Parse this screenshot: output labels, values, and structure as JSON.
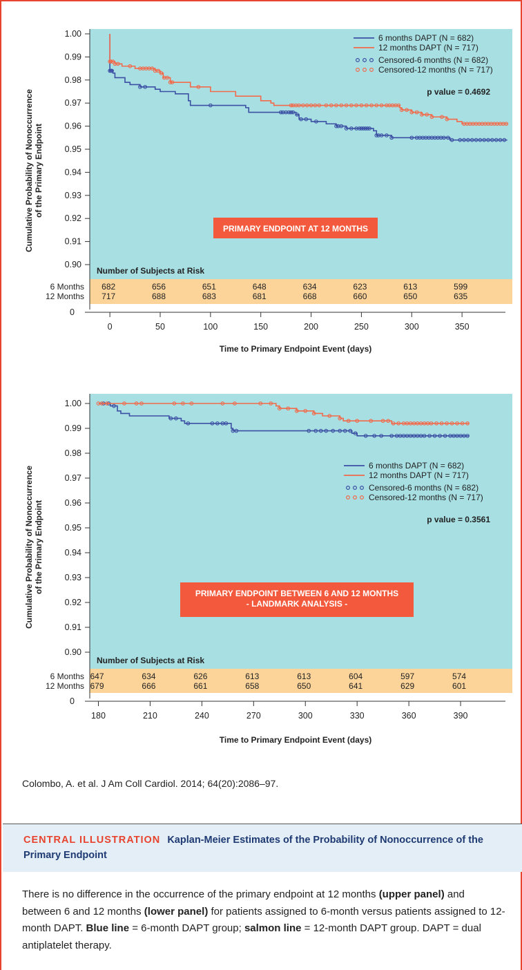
{
  "chart_data": [
    {
      "type": "line",
      "title": "PRIMARY ENDPOINT AT 12 MONTHS",
      "xlabel": "Time to Primary Endpoint Event (days)",
      "ylabel": [
        "Cumulative Probability of Nonoccurrence",
        "of the Primary Endpoint"
      ],
      "xlim": [
        -20,
        400
      ],
      "ylim": [
        0.895,
        1.0
      ],
      "xticks": [
        0,
        50,
        100,
        150,
        200,
        250,
        300,
        350
      ],
      "yticks": [
        "1.00",
        "0.99",
        "0.98",
        "0.97",
        "0.96",
        "0.95",
        "0.94",
        "0.93",
        "0.92",
        "0.91",
        "0.90"
      ],
      "ybreak_label": "0",
      "p_value": "p value = 0.4692",
      "legend_position": "top-right",
      "legend": [
        {
          "label": "6 months DAPT (N = 682)",
          "kind": "line",
          "color": "#3b4fa3"
        },
        {
          "label": "12 months DAPT (N = 717)",
          "kind": "line",
          "color": "#f26a4a"
        },
        {
          "label": "Censored-6 months (N = 682)",
          "kind": "circles",
          "color": "#3b4fa3"
        },
        {
          "label": "Censored-12 months (N = 717)",
          "kind": "circles",
          "color": "#f26a4a"
        }
      ],
      "series": [
        {
          "name": "6 months DAPT (N = 682)",
          "color": "#3b4fa3",
          "points": [
            [
              0,
              1.0
            ],
            [
              0,
              0.984
            ],
            [
              3,
              0.983
            ],
            [
              5,
              0.981
            ],
            [
              15,
              0.979
            ],
            [
              20,
              0.978
            ],
            [
              30,
              0.977
            ],
            [
              45,
              0.976
            ],
            [
              50,
              0.975
            ],
            [
              65,
              0.974
            ],
            [
              78,
              0.971
            ],
            [
              80,
              0.969
            ],
            [
              135,
              0.968
            ],
            [
              138,
              0.966
            ],
            [
              185,
              0.965
            ],
            [
              188,
              0.963
            ],
            [
              200,
              0.962
            ],
            [
              215,
              0.961
            ],
            [
              225,
              0.96
            ],
            [
              235,
              0.959
            ],
            [
              262,
              0.958
            ],
            [
              265,
              0.956
            ],
            [
              280,
              0.955
            ],
            [
              338,
              0.954
            ],
            [
              395,
              0.954
            ]
          ],
          "censored_x": [
            0,
            1,
            2,
            30,
            35,
            100,
            170,
            172,
            175,
            178,
            180,
            182,
            186,
            190,
            195,
            205,
            225,
            227,
            230,
            235,
            240,
            245,
            248,
            250,
            252,
            254,
            256,
            258,
            265,
            267,
            270,
            275,
            280,
            300,
            305,
            308,
            311,
            314,
            317,
            320,
            323,
            326,
            329,
            332,
            336,
            340,
            348,
            352,
            356,
            360,
            364,
            368,
            372,
            376,
            380,
            384,
            388,
            392
          ]
        },
        {
          "name": "12 months DAPT (N = 717)",
          "color": "#f26a4a",
          "points": [
            [
              0,
              1.0
            ],
            [
              0,
              0.988
            ],
            [
              5,
              0.987
            ],
            [
              12,
              0.986
            ],
            [
              25,
              0.985
            ],
            [
              45,
              0.984
            ],
            [
              50,
              0.983
            ],
            [
              53,
              0.981
            ],
            [
              60,
              0.979
            ],
            [
              80,
              0.977
            ],
            [
              100,
              0.975
            ],
            [
              125,
              0.973
            ],
            [
              150,
              0.971
            ],
            [
              160,
              0.97
            ],
            [
              163,
              0.969
            ],
            [
              288,
              0.968
            ],
            [
              290,
              0.967
            ],
            [
              300,
              0.966
            ],
            [
              310,
              0.965
            ],
            [
              320,
              0.964
            ],
            [
              335,
              0.963
            ],
            [
              345,
              0.962
            ],
            [
              350,
              0.961
            ],
            [
              395,
              0.961
            ]
          ],
          "censored_x": [
            0,
            1,
            3,
            5,
            8,
            20,
            30,
            33,
            36,
            39,
            42,
            45,
            48,
            51,
            54,
            57,
            60,
            62,
            88,
            180,
            182,
            185,
            188,
            192,
            196,
            200,
            204,
            208,
            215,
            220,
            225,
            230,
            235,
            240,
            245,
            250,
            255,
            260,
            265,
            270,
            275,
            278,
            281,
            284,
            287,
            290,
            295,
            300,
            305,
            310,
            315,
            320,
            330,
            335,
            352,
            355,
            358,
            361,
            364,
            367,
            370,
            373,
            376,
            379,
            382,
            385,
            388,
            391,
            394
          ]
        }
      ],
      "risk_table": {
        "title": "Number of Subjects at Risk",
        "rows": [
          {
            "label": "6 Months",
            "values": [
              "682",
              "656",
              "651",
              "648",
              "634",
              "623",
              "613",
              "599"
            ]
          },
          {
            "label": "12 Months",
            "values": [
              "717",
              "688",
              "683",
              "681",
              "668",
              "660",
              "650",
              "635"
            ]
          }
        ]
      }
    },
    {
      "type": "line",
      "title": "PRIMARY ENDPOINT BETWEEN 6 AND 12 MONTHS",
      "subtitle": "- LANDMARK ANALYSIS -",
      "xlabel": "Time to Primary Endpoint Event (days)",
      "ylabel": [
        "Cumulative Probability of Nonoccurrence",
        "of the Primary Endpoint"
      ],
      "xlim": [
        175,
        420
      ],
      "ylim": [
        0.895,
        1.0
      ],
      "xticks": [
        180,
        210,
        240,
        270,
        300,
        330,
        360,
        390
      ],
      "yticks": [
        "1.00",
        "0.99",
        "0.98",
        "0.97",
        "0.96",
        "0.95",
        "0.94",
        "0.93",
        "0.92",
        "0.91",
        "0.90"
      ],
      "ybreak_label": "0",
      "p_value": "p value = 0.3561",
      "legend_position": "middle-right",
      "legend": [
        {
          "label": "6 months DAPT (N = 682)",
          "kind": "line",
          "color": "#3b4fa3"
        },
        {
          "label": "12 months DAPT (N = 717)",
          "kind": "line",
          "color": "#f26a4a"
        },
        {
          "label": "Censored-6 months (N = 682)",
          "kind": "circles",
          "color": "#3b4fa3"
        },
        {
          "label": "Censored-12 months (N = 717)",
          "kind": "circles",
          "color": "#f26a4a"
        }
      ],
      "series": [
        {
          "name": "6 months DAPT (N = 682)",
          "color": "#3b4fa3",
          "points": [
            [
              180,
              1.0
            ],
            [
              187,
              0.999
            ],
            [
              191,
              0.997
            ],
            [
              193,
              0.996
            ],
            [
              198,
              0.995
            ],
            [
              221,
              0.994
            ],
            [
              228,
              0.993
            ],
            [
              230,
              0.992
            ],
            [
              257,
              0.99
            ],
            [
              258,
              0.989
            ],
            [
              327,
              0.988
            ],
            [
              330,
              0.987
            ],
            [
              395,
              0.987
            ]
          ],
          "censored_x": [
            183,
            186,
            189,
            222,
            225,
            232,
            246,
            249,
            252,
            254,
            258,
            260,
            302,
            306,
            309,
            312,
            316,
            320,
            323,
            326,
            329,
            335,
            340,
            344,
            350,
            353,
            355,
            357,
            359,
            361,
            363,
            365,
            367,
            369,
            372,
            375,
            378,
            381,
            384,
            386,
            388,
            390,
            392,
            394
          ]
        },
        {
          "name": "12 months DAPT (N = 717)",
          "color": "#f26a4a",
          "points": [
            [
              180,
              1.0
            ],
            [
              283,
              0.999
            ],
            [
              285,
              0.998
            ],
            [
              295,
              0.997
            ],
            [
              305,
              0.996
            ],
            [
              310,
              0.995
            ],
            [
              320,
              0.994
            ],
            [
              322,
              0.993
            ],
            [
              350,
              0.992
            ],
            [
              395,
              0.992
            ]
          ],
          "censored_x": [
            180,
            182,
            185,
            195,
            202,
            205,
            224,
            229,
            234,
            252,
            259,
            274,
            280,
            285,
            290,
            295,
            300,
            305,
            314,
            320,
            325,
            330,
            338,
            345,
            348,
            351,
            354,
            357,
            359,
            361,
            363,
            365,
            367,
            369,
            371,
            373,
            376,
            379,
            382,
            385,
            388,
            391,
            394
          ]
        }
      ],
      "risk_table": {
        "title": "Number of Subjects at Risk",
        "rows": [
          {
            "label": "6 Months",
            "values": [
              "647",
              "634",
              "626",
              "613",
              "613",
              "604",
              "597",
              "574"
            ]
          },
          {
            "label": "12 Months",
            "values": [
              "679",
              "666",
              "661",
              "658",
              "650",
              "641",
              "629",
              "601"
            ]
          }
        ]
      }
    }
  ],
  "citation": "Colombo, A. et al. J Am Coll Cardiol. 2014; 64(20):2086–97.",
  "caption": {
    "label": "CENTRAL ILLUSTRATION",
    "title": "Kaplan-Meier Estimates of the Probability of Nonoccurrence of the Primary Endpoint",
    "body": [
      {
        "text": "There is no difference in the occurrence of the primary endpoint at 12 months ",
        "bold": false
      },
      {
        "text": "(upper panel)",
        "bold": true
      },
      {
        "text": " and between 6 and 12 months ",
        "bold": false
      },
      {
        "text": "(lower panel)",
        "bold": true
      },
      {
        "text": " for patients assigned to 6-month versus patients assigned to 12-month DAPT. ",
        "bold": false
      },
      {
        "text": "Blue line",
        "bold": true
      },
      {
        "text": " = 6-month DAPT group; ",
        "bold": false
      },
      {
        "text": "salmon line",
        "bold": true
      },
      {
        "text": " = 12-month DAPT group. DAPT = dual antiplatelet therapy.",
        "bold": false
      }
    ]
  },
  "colors": {
    "plot_bg": "#a8dfe3",
    "risk_bg": "#fcd49a",
    "accent_red": "#e8432e",
    "title_box": "#f35a3d",
    "caption_band": "#e3eef6",
    "navy": "#1f3a73"
  }
}
